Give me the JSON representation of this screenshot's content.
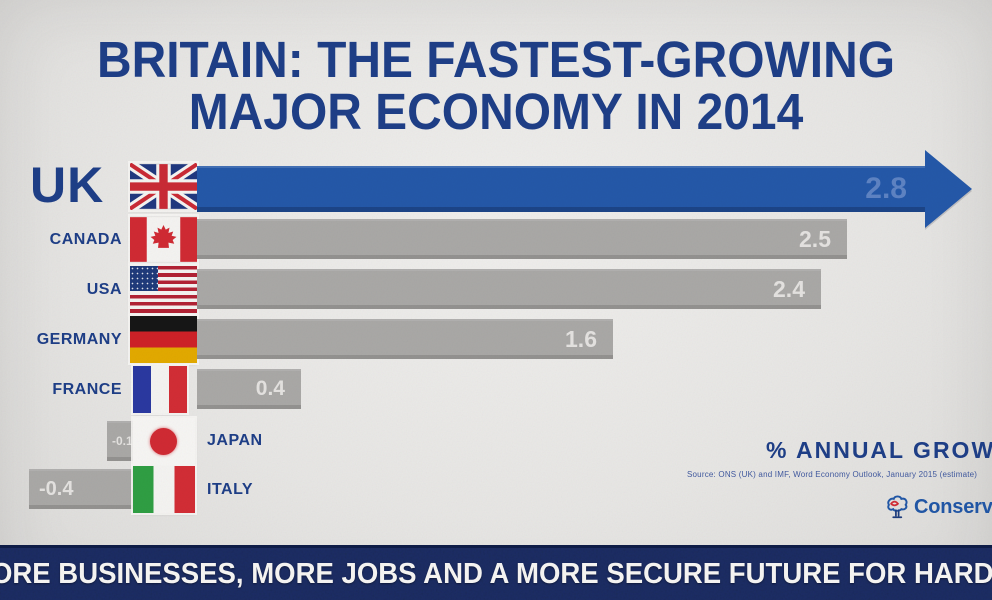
{
  "title": {
    "line1": "BRITAIN: THE FASTEST-GROWING",
    "line2": "MAJOR ECONOMY IN 2014"
  },
  "chart_data": {
    "type": "bar",
    "orientation": "horizontal",
    "title": "Britain: the fastest-growing major economy in 2014",
    "categories": [
      "UK",
      "CANADA",
      "USA",
      "GERMANY",
      "FRANCE",
      "JAPAN",
      "ITALY"
    ],
    "values": [
      2.8,
      2.5,
      2.4,
      1.6,
      0.4,
      -0.1,
      -0.4
    ],
    "value_labels": [
      "2.8",
      "2.5",
      "2.4",
      "1.6",
      "0.4",
      "-0.1",
      "-0.4"
    ],
    "unit": "% annual growth",
    "xlim": [
      -0.5,
      3.0
    ],
    "legend": "none",
    "highlight_series": "UK",
    "flags": [
      "uk-flag",
      "canada-flag",
      "usa-flag",
      "germany-flag",
      "france-flag",
      "japan-flag",
      "italy-flag"
    ]
  },
  "annotations": {
    "growth_label": "% ANNUAL GROWTH",
    "source": "Source: ONS (UK) and IMF, Word Economy Outlook, January 2015 (estimate)"
  },
  "logo": {
    "label": "Conservatives"
  },
  "footer": {
    "text": "MORE BUSINESSES, MORE JOBS AND A MORE SECURE FUTURE FOR HARDWORKING PEOPLE"
  },
  "colors": {
    "title_navy": "#1e3e87",
    "uk_bar_blue": "#2458a8",
    "gray_bar": "#a9a8a6",
    "banner_navy": "#1c2d66",
    "paper": "#e8e7e5"
  }
}
